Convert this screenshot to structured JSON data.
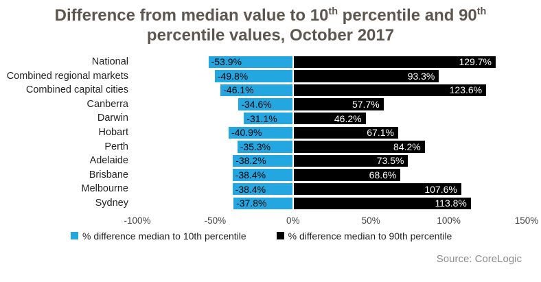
{
  "title": {
    "part1": "Difference from median value to 10",
    "sup1": "th",
    "part2": " percentile and 90",
    "sup2": "th",
    "part3": "percentile values, October 2017"
  },
  "colors": {
    "p10_blue": "#24A7E0",
    "p90_black": "#000000",
    "title_text": "#5D564F",
    "source_text": "#8C8C8C"
  },
  "chart_data": {
    "type": "bar",
    "orientation": "horizontal",
    "title": "Difference from median value to 10th percentile and 90th percentile values, October 2017",
    "categories": [
      "National",
      "Combined regional markets",
      "Combined capital cities",
      "Canberra",
      "Darwin",
      "Hobart",
      "Perth",
      "Adelaide",
      "Brisbane",
      "Melbourne",
      "Sydney"
    ],
    "series": [
      {
        "name": "% difference median to 10th percentile",
        "color": "#24A7E0",
        "values": [
          -53.9,
          -49.8,
          -46.1,
          -34.6,
          -31.1,
          -40.9,
          -35.3,
          -38.2,
          -38.4,
          -38.4,
          -37.8
        ]
      },
      {
        "name": "% difference median to 90th percentile",
        "color": "#000000",
        "values": [
          129.7,
          93.3,
          123.6,
          57.7,
          46.2,
          67.1,
          84.2,
          73.5,
          68.6,
          107.6,
          113.8
        ]
      }
    ],
    "value_labels": {
      "p10": [
        "-53.9%",
        "-49.8%",
        "-46.1%",
        "-34.6%",
        "-31.1%",
        "-40.9%",
        "-35.3%",
        "-38.2%",
        "-38.4%",
        "-38.4%",
        "-37.8%"
      ],
      "p90": [
        "129.7%",
        "93.3%",
        "123.6%",
        "57.7%",
        "46.2%",
        "67.1%",
        "84.2%",
        "73.5%",
        "68.6%",
        "107.6%",
        "113.8%"
      ]
    },
    "xlim": [
      -100,
      150
    ],
    "x_ticks": [
      {
        "value": -100,
        "label": "-100%"
      },
      {
        "value": -50,
        "label": "-50%"
      },
      {
        "value": 0,
        "label": "0%"
      },
      {
        "value": 50,
        "label": "50%"
      },
      {
        "value": 100,
        "label": "100%"
      },
      {
        "value": 150,
        "label": "150%"
      }
    ],
    "grid": false,
    "legend_position": "bottom"
  },
  "source": "Source: CoreLogic"
}
